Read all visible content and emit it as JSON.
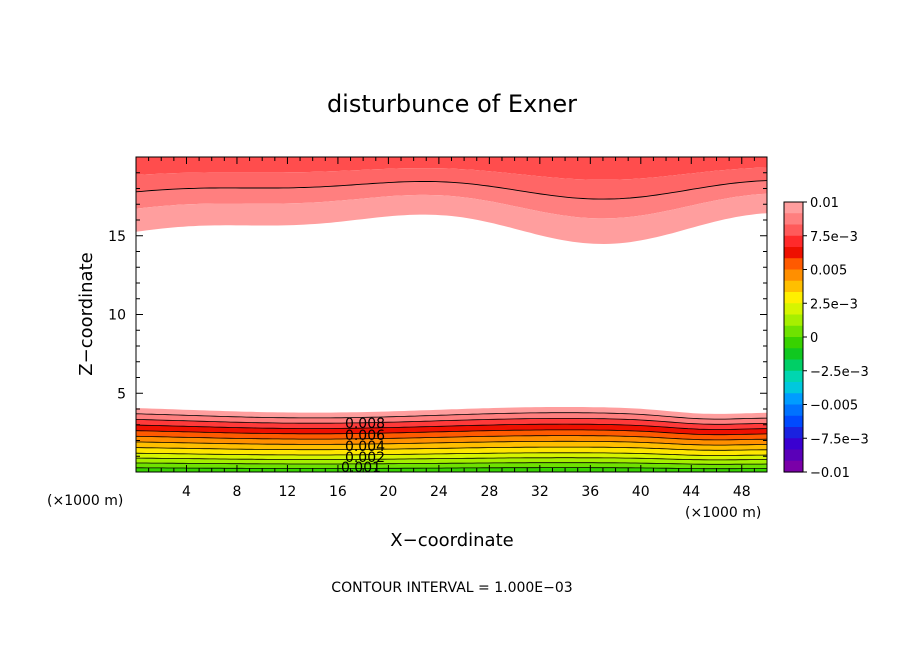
{
  "chart_data": {
    "type": "contour",
    "title": "disturbunce of Exner",
    "xlabel": "X−coordinate",
    "ylabel": "Z−coordinate",
    "x_unit_left": "(×1000 m)",
    "x_unit_right": "(×1000 m)",
    "xlim": [
      0,
      50
    ],
    "ylim": [
      0,
      20
    ],
    "x_ticks": [
      4,
      8,
      12,
      16,
      20,
      24,
      28,
      32,
      36,
      40,
      44,
      48
    ],
    "y_ticks": [
      5,
      10,
      15
    ],
    "contour_interval": 0.001,
    "note": "CONTOUR INTERVAL = 1.000E−03",
    "contour_labels": [
      "0.008",
      "0.006",
      "0.004",
      "0.002",
      "0.001"
    ],
    "colorbar": {
      "min": -0.01,
      "max": 0.01,
      "tick_labels": [
        "0.01",
        "7.5e−3",
        "0.005",
        "2.5e−3",
        "0",
        "−2.5e−3",
        "−0.005",
        "−7.5e−3",
        "−0.01"
      ],
      "colors": [
        "#ff9e9e",
        "#ff7f7f",
        "#ff5a5a",
        "#ff2a2a",
        "#ee1000",
        "#ff5a00",
        "#ff8f00",
        "#ffbf00",
        "#ffef00",
        "#d6f500",
        "#a6ef00",
        "#6fe200",
        "#38d200",
        "#10c820",
        "#00cf66",
        "#00d6b0",
        "#00c8dd",
        "#009cff",
        "#0072ff",
        "#004aff",
        "#1a22e0",
        "#3a00d0",
        "#5a00b8",
        "#7a00a8"
      ]
    },
    "regions": [
      {
        "name": "upper band",
        "z_range": [
          15.5,
          20
        ],
        "value_range": [
          0.007,
          0.01
        ]
      },
      {
        "name": "lower band",
        "z_range": [
          0,
          4.0
        ],
        "value_range": [
          0.0,
          0.009
        ]
      }
    ]
  }
}
